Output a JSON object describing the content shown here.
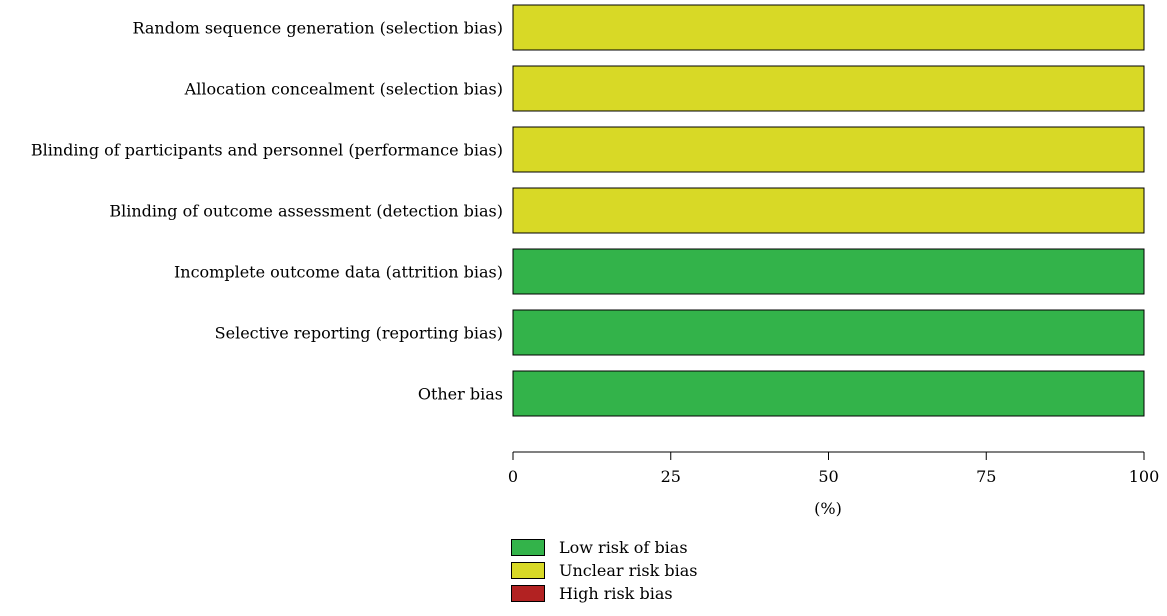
{
  "chart_data": {
    "type": "bar",
    "orientation": "horizontal",
    "stacked": true,
    "categories": [
      "Random sequence generation (selection bias)",
      "Allocation concealment (selection bias)",
      "Blinding of participants and personnel (performance bias)",
      "Blinding of outcome assessment (detection bias)",
      "Incomplete outcome data (attrition bias)",
      "Selective reporting (reporting bias)",
      "Other bias"
    ],
    "series": [
      {
        "name": "Low risk of bias",
        "color": "#33b34a",
        "values": [
          0,
          0,
          0,
          0,
          100,
          100,
          100
        ]
      },
      {
        "name": "Unclear risk bias",
        "color": "#d8d926",
        "values": [
          100,
          100,
          100,
          100,
          0,
          0,
          0
        ]
      },
      {
        "name": "High risk bias",
        "color": "#b22222",
        "values": [
          0,
          0,
          0,
          0,
          0,
          0,
          0
        ]
      }
    ],
    "xlabel": "(%)",
    "xlim": [
      0,
      100
    ],
    "xticks": [
      "0",
      "25",
      "50",
      "75",
      "100"
    ],
    "legend_position": "bottom"
  }
}
